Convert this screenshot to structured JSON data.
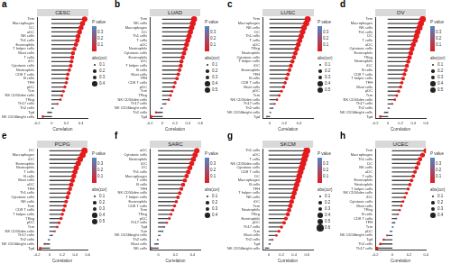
{
  "chart_data": [
    {
      "type": "lollipop",
      "title": "CESC",
      "annotations": [
        "a"
      ],
      "x_label": "Correlation",
      "orientation": "horizontal",
      "grid": false,
      "categories": [
        "Tem",
        "Macrophages",
        "DC",
        "aDC",
        "NK cells",
        "Th1 cells",
        "Eosinophils",
        "T helper cells",
        "Mast cells",
        "T cells",
        "iDC",
        "Cytotoxic cells",
        "Neutrophils",
        "CD8 T cells",
        "B cells",
        "TFH",
        "pDC",
        "Tcm",
        "NK CD56dim cells",
        "TReg",
        "Th17 cells",
        "Th2 cells",
        "Tgd",
        "NK CD56bright cells"
      ],
      "values": [
        0.45,
        0.42,
        0.4,
        0.38,
        0.36,
        0.35,
        0.33,
        0.31,
        0.29,
        0.28,
        0.27,
        0.26,
        0.24,
        0.22,
        0.21,
        0.2,
        0.18,
        0.16,
        0.14,
        0.12,
        0.08,
        0.02,
        -0.05,
        -0.12
      ],
      "p_values": [
        0,
        0,
        0,
        0,
        0,
        0,
        0,
        0,
        0,
        0,
        0,
        0,
        0,
        0,
        0,
        0,
        0.001,
        0.003,
        0.01,
        0.03,
        0.12,
        0.36,
        0.22,
        0.01
      ],
      "xlim": [
        -0.2,
        0.5
      ],
      "xticks": [
        -0.2,
        0,
        0.2,
        0.4
      ],
      "color_scale": {
        "title": "P value",
        "range": [
          0,
          0.4
        ],
        "ticks": [
          0.1,
          0.2,
          0.3
        ]
      },
      "size_legend": {
        "title": "abs(cor)",
        "ticks": [
          0.1,
          0.2,
          0.3,
          0.4
        ]
      }
    },
    {
      "type": "lollipop",
      "title": "LUAD",
      "annotations": [
        "b"
      ],
      "x_label": "Correlation",
      "orientation": "horizontal",
      "grid": false,
      "categories": [
        "Tem",
        "NK cells",
        "Macrophages",
        "DC",
        "Th1 cells",
        "T cells",
        "aDC",
        "Neutrophils",
        "Cytotoxic cells",
        "Eosinophils",
        "iDC",
        "T helper cells",
        "B cells",
        "Mast cells",
        "TFH",
        "CD8 T cells",
        "pDC",
        "Tcm",
        "TReg",
        "NK CD56dim cells",
        "Th17 cells",
        "NK CD56bright cells",
        "Th2 cells",
        "Tgd"
      ],
      "values": [
        0.5,
        0.48,
        0.46,
        0.44,
        0.42,
        0.4,
        0.38,
        0.36,
        0.34,
        0.32,
        0.3,
        0.29,
        0.27,
        0.25,
        0.23,
        0.2,
        0.18,
        0.15,
        0.13,
        0.1,
        0.05,
        -0.02,
        -0.1,
        -0.18
      ],
      "p_values": [
        0,
        0,
        0,
        0,
        0,
        0,
        0,
        0,
        0,
        0,
        0,
        0,
        0,
        0,
        0,
        0,
        0.001,
        0.002,
        0.005,
        0.02,
        0.25,
        0.38,
        0.03,
        0.001
      ],
      "xlim": [
        -0.2,
        0.6
      ],
      "xticks": [
        -0.2,
        0,
        0.2,
        0.4,
        0.6
      ],
      "color_scale": {
        "title": "P value",
        "range": [
          0,
          0.4
        ],
        "ticks": [
          0.1,
          0.2,
          0.3
        ]
      },
      "size_legend": {
        "title": "abs(cor)",
        "ticks": [
          0.1,
          0.2,
          0.3,
          0.4,
          0.5
        ]
      }
    },
    {
      "type": "lollipop",
      "title": "LUSC",
      "annotations": [
        "c"
      ],
      "x_label": "Correlation",
      "orientation": "horizontal",
      "grid": false,
      "categories": [
        "Tem",
        "Macrophages",
        "NK cells",
        "DC",
        "Th1 cells",
        "T cells",
        "aDC",
        "TReg",
        "Neutrophils",
        "Cytotoxic cells",
        "T helper cells",
        "iDC",
        "Eosinophils",
        "TFH",
        "B cells",
        "CD8 T cells",
        "Mast cells",
        "pDC",
        "Tcm",
        "NK CD56dim cells",
        "Th17 cells",
        "Th2 cells",
        "NK CD56bright cells",
        "Tgd"
      ],
      "values": [
        0.52,
        0.5,
        0.47,
        0.45,
        0.43,
        0.41,
        0.39,
        0.37,
        0.35,
        0.33,
        0.31,
        0.29,
        0.27,
        0.25,
        0.23,
        0.21,
        0.19,
        0.16,
        0.13,
        0.1,
        0.07,
        0.04,
        0.01,
        -0.04
      ],
      "p_values": [
        0,
        0,
        0,
        0,
        0,
        0,
        0,
        0,
        0,
        0,
        0,
        0,
        0,
        0,
        0,
        0,
        0,
        0.001,
        0.004,
        0.03,
        0.12,
        0.35,
        0.4,
        0.3
      ],
      "xlim": [
        -0.1,
        0.6
      ],
      "xticks": [
        0,
        0.2,
        0.4
      ],
      "color_scale": {
        "title": "P value",
        "range": [
          0,
          0.4
        ],
        "ticks": [
          0.1,
          0.2,
          0.3
        ]
      },
      "size_legend": {
        "title": "abs(cor)",
        "ticks": [
          0.1,
          0.2,
          0.3,
          0.4,
          0.5
        ]
      }
    },
    {
      "type": "lollipop",
      "title": "OV",
      "annotations": [
        "d"
      ],
      "x_label": "Correlation",
      "orientation": "horizontal",
      "grid": false,
      "categories": [
        "Tem",
        "Macrophages",
        "NK cells",
        "Th1 cells",
        "DC",
        "T cells",
        "aDC",
        "Cytotoxic cells",
        "Eosinophils",
        "TReg",
        "Neutrophils",
        "iDC",
        "B cells",
        "CD8 T cells",
        "T helper cells",
        "TFH",
        "Mast cells",
        "pDC",
        "Tcm",
        "NK CD56dim cells",
        "Th17 cells",
        "Th2 cells",
        "NK CD56bright cells",
        "Tgd"
      ],
      "values": [
        0.55,
        0.52,
        0.5,
        0.47,
        0.45,
        0.43,
        0.4,
        0.38,
        0.36,
        0.34,
        0.32,
        0.3,
        0.28,
        0.26,
        0.24,
        0.22,
        0.2,
        0.17,
        0.14,
        0.11,
        0.07,
        0.02,
        -0.05,
        -0.12
      ],
      "p_values": [
        0,
        0,
        0,
        0,
        0,
        0,
        0,
        0,
        0,
        0,
        0,
        0,
        0,
        0,
        0,
        0,
        0,
        0.001,
        0.005,
        0.02,
        0.14,
        0.37,
        0.29,
        0.03
      ],
      "xlim": [
        -0.2,
        0.6
      ],
      "xticks": [
        -0.2,
        0,
        0.2,
        0.4,
        0.6
      ],
      "color_scale": {
        "title": "P value",
        "range": [
          0,
          0.4
        ],
        "ticks": [
          0.1,
          0.2,
          0.3
        ]
      },
      "size_legend": {
        "title": "abs(cor)",
        "ticks": [
          0.1,
          0.2,
          0.3,
          0.4,
          0.5
        ]
      }
    },
    {
      "type": "lollipop",
      "title": "PCPG",
      "annotations": [
        "e"
      ],
      "x_label": "Correlation",
      "orientation": "horizontal",
      "grid": false,
      "categories": [
        "DC",
        "Macrophages",
        "iDC",
        "Eosinophils",
        "Neutrophils",
        "T cells",
        "B cells",
        "Mast cells",
        "aDC",
        "TFH",
        "Th1 cells",
        "Cytotoxic cells",
        "NK cells",
        "Tem",
        "CD8 T cells",
        "T helper cells",
        "TReg",
        "pDC",
        "Tcm",
        "NK CD56dim cells",
        "Th17 cells",
        "Th2 cells",
        "NK CD56bright cells",
        "Tgd"
      ],
      "values": [
        0.55,
        0.52,
        0.48,
        0.45,
        0.42,
        0.4,
        0.38,
        0.36,
        0.34,
        0.32,
        0.3,
        0.28,
        0.26,
        0.24,
        0.22,
        0.2,
        0.18,
        0.15,
        0.12,
        0.08,
        0.04,
        -0.02,
        -0.08,
        -0.15
      ],
      "p_values": [
        0,
        0,
        0,
        0,
        0,
        0,
        0,
        0,
        0,
        0,
        0,
        0,
        0,
        0,
        0,
        0,
        0,
        0.01,
        0.04,
        0.18,
        0.33,
        0.39,
        0.2,
        0.02
      ],
      "xlim": [
        -0.2,
        0.6
      ],
      "xticks": [
        -0.2,
        0,
        0.2,
        0.4,
        0.6
      ],
      "color_scale": {
        "title": "P value",
        "range": [
          0,
          0.4
        ],
        "ticks": [
          0.1,
          0.2,
          0.3
        ]
      },
      "size_legend": {
        "title": "abs(cor)",
        "ticks": [
          0.1,
          0.2,
          0.3,
          0.4,
          0.5
        ]
      }
    },
    {
      "type": "lollipop",
      "title": "SARC",
      "annotations": [
        "f"
      ],
      "x_label": "Correlation",
      "orientation": "horizontal",
      "grid": false,
      "categories": [
        "aDC",
        "Cytotoxic cells",
        "Neutrophils",
        "iDC",
        "DC",
        "Th1 cells",
        "Macrophages",
        "T cells",
        "B cells",
        "TFH",
        "NK CD56dim cells",
        "T helper cells",
        "Eosinophils",
        "CD8 T cells",
        "Tem",
        "TReg",
        "pDC",
        "Th17 cells",
        "Tgd",
        "Tcm",
        "NK CD56bright cells",
        "Th2 cells",
        "Mast cells",
        "NK cells"
      ],
      "values": [
        0.45,
        0.43,
        0.41,
        0.39,
        0.37,
        0.35,
        0.33,
        0.31,
        0.29,
        0.27,
        0.25,
        0.23,
        0.21,
        0.19,
        0.17,
        0.15,
        0.13,
        0.1,
        0.07,
        0.05,
        0.02,
        -0.01,
        -0.04,
        -0.08
      ],
      "p_values": [
        0,
        0,
        0,
        0,
        0,
        0,
        0,
        0,
        0,
        0,
        0,
        0,
        0,
        0,
        0,
        0,
        0.03,
        0.1,
        0.26,
        0.4,
        0.4,
        0.4,
        0.4,
        0.2
      ],
      "xlim": [
        -0.1,
        0.5
      ],
      "xticks": [
        0,
        0.2,
        0.4
      ],
      "color_scale": {
        "title": "P value",
        "range": [
          0,
          0.4
        ],
        "ticks": [
          0.1,
          0.2,
          0.3
        ]
      },
      "size_legend": {
        "title": "abs(cor)",
        "ticks": [
          0.1,
          0.2,
          0.3,
          0.4
        ]
      }
    },
    {
      "type": "lollipop",
      "title": "SKCM",
      "annotations": [
        "g"
      ],
      "x_label": "Correlation",
      "orientation": "horizontal",
      "grid": false,
      "categories": [
        "Th1 cells",
        "aDC",
        "T cells",
        "NK CD56dim cells",
        "Cytotoxic cells",
        "CD8 T cells",
        "DC",
        "Macrophages",
        "B cells",
        "TFH",
        "T helper cells",
        "NK cells",
        "iDC",
        "Tem",
        "Neutrophils",
        "TReg",
        "Eosinophils",
        "pDC",
        "Th17 cells",
        "Tcm",
        "Mast cells",
        "Th2 cells",
        "Tgd",
        "NK CD56bright cells"
      ],
      "values": [
        0.6,
        0.58,
        0.56,
        0.54,
        0.52,
        0.5,
        0.48,
        0.46,
        0.44,
        0.42,
        0.4,
        0.38,
        0.36,
        0.34,
        0.32,
        0.3,
        0.27,
        0.24,
        0.2,
        0.16,
        0.12,
        0.06,
        0.02,
        -0.05
      ],
      "p_values": [
        0,
        0,
        0,
        0,
        0,
        0,
        0,
        0,
        0,
        0,
        0,
        0,
        0,
        0,
        0,
        0,
        0,
        0,
        0,
        0,
        0,
        0.2,
        0.38,
        0.28
      ],
      "xlim": [
        -0.1,
        0.7
      ],
      "xticks": [
        0,
        0.2,
        0.4,
        0.6
      ],
      "color_scale": {
        "title": "P value",
        "range": [
          0,
          0.4
        ],
        "ticks": [
          0.1,
          0.2,
          0.3
        ]
      },
      "size_legend": {
        "title": "abs(cor)",
        "ticks": [
          0.1,
          0.2,
          0.3,
          0.4,
          0.5,
          0.6
        ]
      }
    },
    {
      "type": "lollipop",
      "title": "UCEC",
      "annotations": [
        "h"
      ],
      "x_label": "Correlation",
      "orientation": "horizontal",
      "grid": false,
      "categories": [
        "Tem",
        "Macrophages",
        "Th1 cells",
        "DC",
        "NK cells",
        "aDC",
        "T cells",
        "Eosinophils",
        "Neutrophils",
        "T helper cells",
        "NK CD56dim cells",
        "iDC",
        "Cytotoxic cells",
        "Mast cells",
        "TReg",
        "B cells",
        "CD8 T cells",
        "TFH",
        "Tcm",
        "pDC",
        "NK CD56bright cells",
        "Tgd",
        "Th2 cells",
        "Th17 cells"
      ],
      "values": [
        0.4,
        0.36,
        0.33,
        0.31,
        0.29,
        0.27,
        0.25,
        0.23,
        0.21,
        0.19,
        0.17,
        0.15,
        0.13,
        0.11,
        0.09,
        0.07,
        0.05,
        0.03,
        0.01,
        -0.02,
        -0.06,
        -0.1,
        -0.14,
        -0.18
      ],
      "p_values": [
        0,
        0,
        0,
        0,
        0,
        0,
        0,
        0,
        0,
        0,
        0,
        0,
        0,
        0.01,
        0.04,
        0.1,
        0.24,
        0.35,
        0.4,
        0.4,
        0.16,
        0.02,
        0.001,
        0
      ],
      "xlim": [
        -0.2,
        0.4
      ],
      "xticks": [
        -0.2,
        0,
        0.2,
        0.4
      ],
      "color_scale": {
        "title": "P value",
        "range": [
          0,
          0.4
        ],
        "ticks": [
          0.1,
          0.2,
          0.3
        ]
      },
      "size_legend": {
        "title": "abs(cor)",
        "ticks": [
          0.1,
          0.2,
          0.3,
          0.4
        ]
      }
    }
  ]
}
